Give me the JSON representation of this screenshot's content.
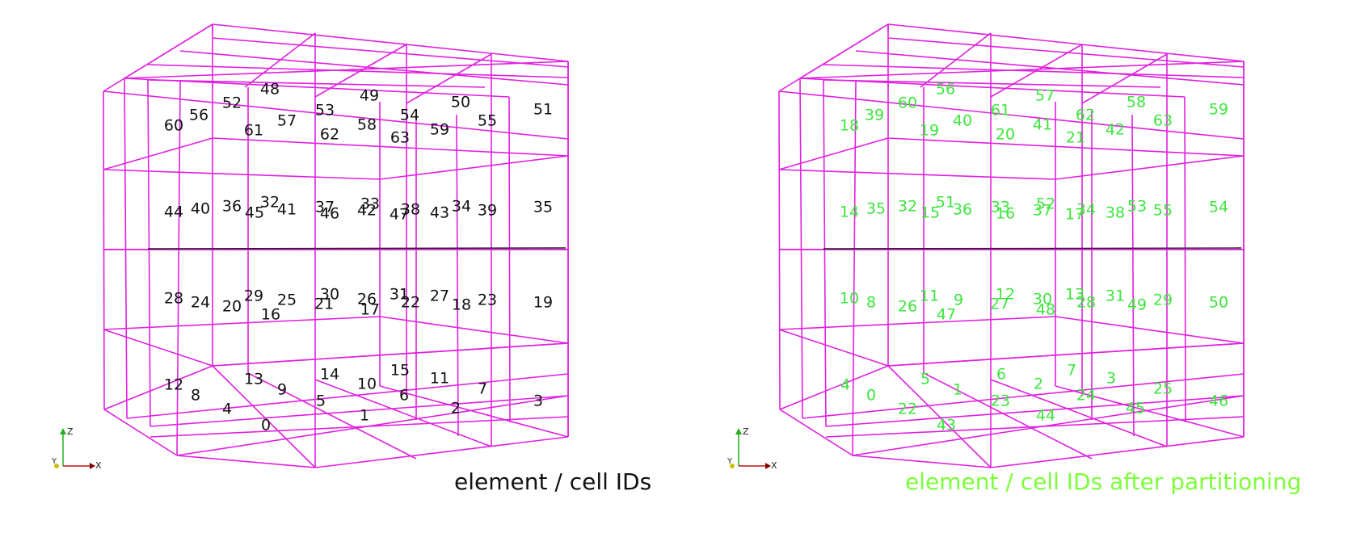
{
  "colors": {
    "wireframe": "#e020e0",
    "left_ids": "#111111",
    "right_ids": "#3ce63c",
    "right_caption": "#7cff3a",
    "axis_z": "#20b020",
    "axis_x": "#c01010",
    "axis_y": "#d0c000"
  },
  "axes": {
    "x": "X",
    "y": "Y",
    "z": "Z"
  },
  "left_panel": {
    "caption": "element / cell IDs",
    "labels": [
      {
        "t": "48",
        "x": 334,
        "y": 111
      },
      {
        "t": "52",
        "x": 287,
        "y": 128
      },
      {
        "t": "49",
        "x": 457,
        "y": 119
      },
      {
        "t": "53",
        "x": 402,
        "y": 137
      },
      {
        "t": "50",
        "x": 570,
        "y": 127
      },
      {
        "t": "54",
        "x": 507,
        "y": 143
      },
      {
        "t": "51",
        "x": 672,
        "y": 136
      },
      {
        "t": "56",
        "x": 246,
        "y": 143
      },
      {
        "t": "60",
        "x": 215,
        "y": 156
      },
      {
        "t": "57",
        "x": 355,
        "y": 150
      },
      {
        "t": "58",
        "x": 454,
        "y": 155
      },
      {
        "t": "55",
        "x": 603,
        "y": 150
      },
      {
        "t": "61",
        "x": 314,
        "y": 162
      },
      {
        "t": "62",
        "x": 408,
        "y": 167
      },
      {
        "t": "59",
        "x": 544,
        "y": 161
      },
      {
        "t": "63",
        "x": 495,
        "y": 171
      },
      {
        "t": "32",
        "x": 334,
        "y": 251
      },
      {
        "t": "33",
        "x": 458,
        "y": 253
      },
      {
        "t": "36",
        "x": 287,
        "y": 256
      },
      {
        "t": "37",
        "x": 402,
        "y": 257
      },
      {
        "t": "34",
        "x": 571,
        "y": 256
      },
      {
        "t": "35",
        "x": 672,
        "y": 257
      },
      {
        "t": "40",
        "x": 248,
        "y": 259
      },
      {
        "t": "41",
        "x": 355,
        "y": 260
      },
      {
        "t": "42",
        "x": 454,
        "y": 261
      },
      {
        "t": "38",
        "x": 508,
        "y": 260
      },
      {
        "t": "39",
        "x": 603,
        "y": 261
      },
      {
        "t": "44",
        "x": 215,
        "y": 263
      },
      {
        "t": "45",
        "x": 315,
        "y": 264
      },
      {
        "t": "46",
        "x": 408,
        "y": 265
      },
      {
        "t": "47",
        "x": 494,
        "y": 266
      },
      {
        "t": "43",
        "x": 544,
        "y": 264
      },
      {
        "t": "30",
        "x": 408,
        "y": 365
      },
      {
        "t": "29",
        "x": 314,
        "y": 367
      },
      {
        "t": "31",
        "x": 494,
        "y": 365
      },
      {
        "t": "27",
        "x": 544,
        "y": 367
      },
      {
        "t": "28",
        "x": 215,
        "y": 370
      },
      {
        "t": "26",
        "x": 454,
        "y": 371
      },
      {
        "t": "23",
        "x": 603,
        "y": 372
      },
      {
        "t": "25",
        "x": 355,
        "y": 372
      },
      {
        "t": "22",
        "x": 508,
        "y": 375
      },
      {
        "t": "24",
        "x": 248,
        "y": 375
      },
      {
        "t": "18",
        "x": 571,
        "y": 378
      },
      {
        "t": "19",
        "x": 672,
        "y": 375
      },
      {
        "t": "21",
        "x": 401,
        "y": 377
      },
      {
        "t": "20",
        "x": 287,
        "y": 380
      },
      {
        "t": "17",
        "x": 458,
        "y": 384
      },
      {
        "t": "16",
        "x": 335,
        "y": 390
      },
      {
        "t": "15",
        "x": 495,
        "y": 459
      },
      {
        "t": "14",
        "x": 408,
        "y": 464
      },
      {
        "t": "11",
        "x": 544,
        "y": 469
      },
      {
        "t": "13",
        "x": 314,
        "y": 470
      },
      {
        "t": "10",
        "x": 454,
        "y": 476
      },
      {
        "t": "12",
        "x": 215,
        "y": 477
      },
      {
        "t": "9",
        "x": 349,
        "y": 483
      },
      {
        "t": "7",
        "x": 597,
        "y": 482
      },
      {
        "t": "8",
        "x": 242,
        "y": 490
      },
      {
        "t": "6",
        "x": 500,
        "y": 490
      },
      {
        "t": "5",
        "x": 397,
        "y": 497
      },
      {
        "t": "3",
        "x": 666,
        "y": 497
      },
      {
        "t": "4",
        "x": 281,
        "y": 507
      },
      {
        "t": "2",
        "x": 564,
        "y": 506
      },
      {
        "t": "1",
        "x": 451,
        "y": 515
      },
      {
        "t": "0",
        "x": 329,
        "y": 527
      }
    ]
  },
  "right_panel": {
    "caption": "element / cell IDs after partitioning",
    "labels": [
      {
        "t": "56",
        "x": 334,
        "y": 111
      },
      {
        "t": "60",
        "x": 287,
        "y": 128
      },
      {
        "t": "57",
        "x": 457,
        "y": 119
      },
      {
        "t": "61",
        "x": 402,
        "y": 137
      },
      {
        "t": "58",
        "x": 570,
        "y": 127
      },
      {
        "t": "62",
        "x": 507,
        "y": 143
      },
      {
        "t": "59",
        "x": 672,
        "y": 136
      },
      {
        "t": "39",
        "x": 246,
        "y": 143
      },
      {
        "t": "18",
        "x": 215,
        "y": 156
      },
      {
        "t": "40",
        "x": 355,
        "y": 150
      },
      {
        "t": "41",
        "x": 454,
        "y": 155
      },
      {
        "t": "63",
        "x": 603,
        "y": 150
      },
      {
        "t": "19",
        "x": 314,
        "y": 162
      },
      {
        "t": "20",
        "x": 408,
        "y": 167
      },
      {
        "t": "42",
        "x": 544,
        "y": 161
      },
      {
        "t": "21",
        "x": 495,
        "y": 171
      },
      {
        "t": "51",
        "x": 334,
        "y": 251
      },
      {
        "t": "52",
        "x": 458,
        "y": 253
      },
      {
        "t": "32",
        "x": 287,
        "y": 256
      },
      {
        "t": "33",
        "x": 402,
        "y": 257
      },
      {
        "t": "53",
        "x": 571,
        "y": 256
      },
      {
        "t": "54",
        "x": 672,
        "y": 257
      },
      {
        "t": "35",
        "x": 248,
        "y": 259
      },
      {
        "t": "36",
        "x": 355,
        "y": 260
      },
      {
        "t": "37",
        "x": 454,
        "y": 261
      },
      {
        "t": "34",
        "x": 508,
        "y": 260
      },
      {
        "t": "55",
        "x": 603,
        "y": 261
      },
      {
        "t": "14",
        "x": 215,
        "y": 263
      },
      {
        "t": "15",
        "x": 315,
        "y": 264
      },
      {
        "t": "16",
        "x": 408,
        "y": 265
      },
      {
        "t": "17",
        "x": 494,
        "y": 266
      },
      {
        "t": "38",
        "x": 544,
        "y": 264
      },
      {
        "t": "12",
        "x": 408,
        "y": 365
      },
      {
        "t": "11",
        "x": 314,
        "y": 367
      },
      {
        "t": "13",
        "x": 494,
        "y": 365
      },
      {
        "t": "31",
        "x": 544,
        "y": 367
      },
      {
        "t": "10",
        "x": 215,
        "y": 370
      },
      {
        "t": "30",
        "x": 454,
        "y": 371
      },
      {
        "t": "29",
        "x": 603,
        "y": 372
      },
      {
        "t": "9",
        "x": 350,
        "y": 372
      },
      {
        "t": "28",
        "x": 508,
        "y": 375
      },
      {
        "t": "8",
        "x": 242,
        "y": 375
      },
      {
        "t": "49",
        "x": 571,
        "y": 378
      },
      {
        "t": "50",
        "x": 672,
        "y": 375
      },
      {
        "t": "27",
        "x": 401,
        "y": 377
      },
      {
        "t": "26",
        "x": 287,
        "y": 380
      },
      {
        "t": "48",
        "x": 458,
        "y": 384
      },
      {
        "t": "47",
        "x": 335,
        "y": 390
      },
      {
        "t": "7",
        "x": 490,
        "y": 459
      },
      {
        "t": "6",
        "x": 403,
        "y": 464
      },
      {
        "t": "3",
        "x": 539,
        "y": 469
      },
      {
        "t": "5",
        "x": 309,
        "y": 470
      },
      {
        "t": "2",
        "x": 449,
        "y": 476
      },
      {
        "t": "4",
        "x": 210,
        "y": 477
      },
      {
        "t": "1",
        "x": 349,
        "y": 483
      },
      {
        "t": "25",
        "x": 603,
        "y": 482
      },
      {
        "t": "0",
        "x": 242,
        "y": 490
      },
      {
        "t": "24",
        "x": 508,
        "y": 490
      },
      {
        "t": "23",
        "x": 402,
        "y": 497
      },
      {
        "t": "46",
        "x": 672,
        "y": 497
      },
      {
        "t": "22",
        "x": 287,
        "y": 507
      },
      {
        "t": "45",
        "x": 569,
        "y": 506
      },
      {
        "t": "44",
        "x": 458,
        "y": 515
      },
      {
        "t": "43",
        "x": 335,
        "y": 527
      }
    ]
  }
}
